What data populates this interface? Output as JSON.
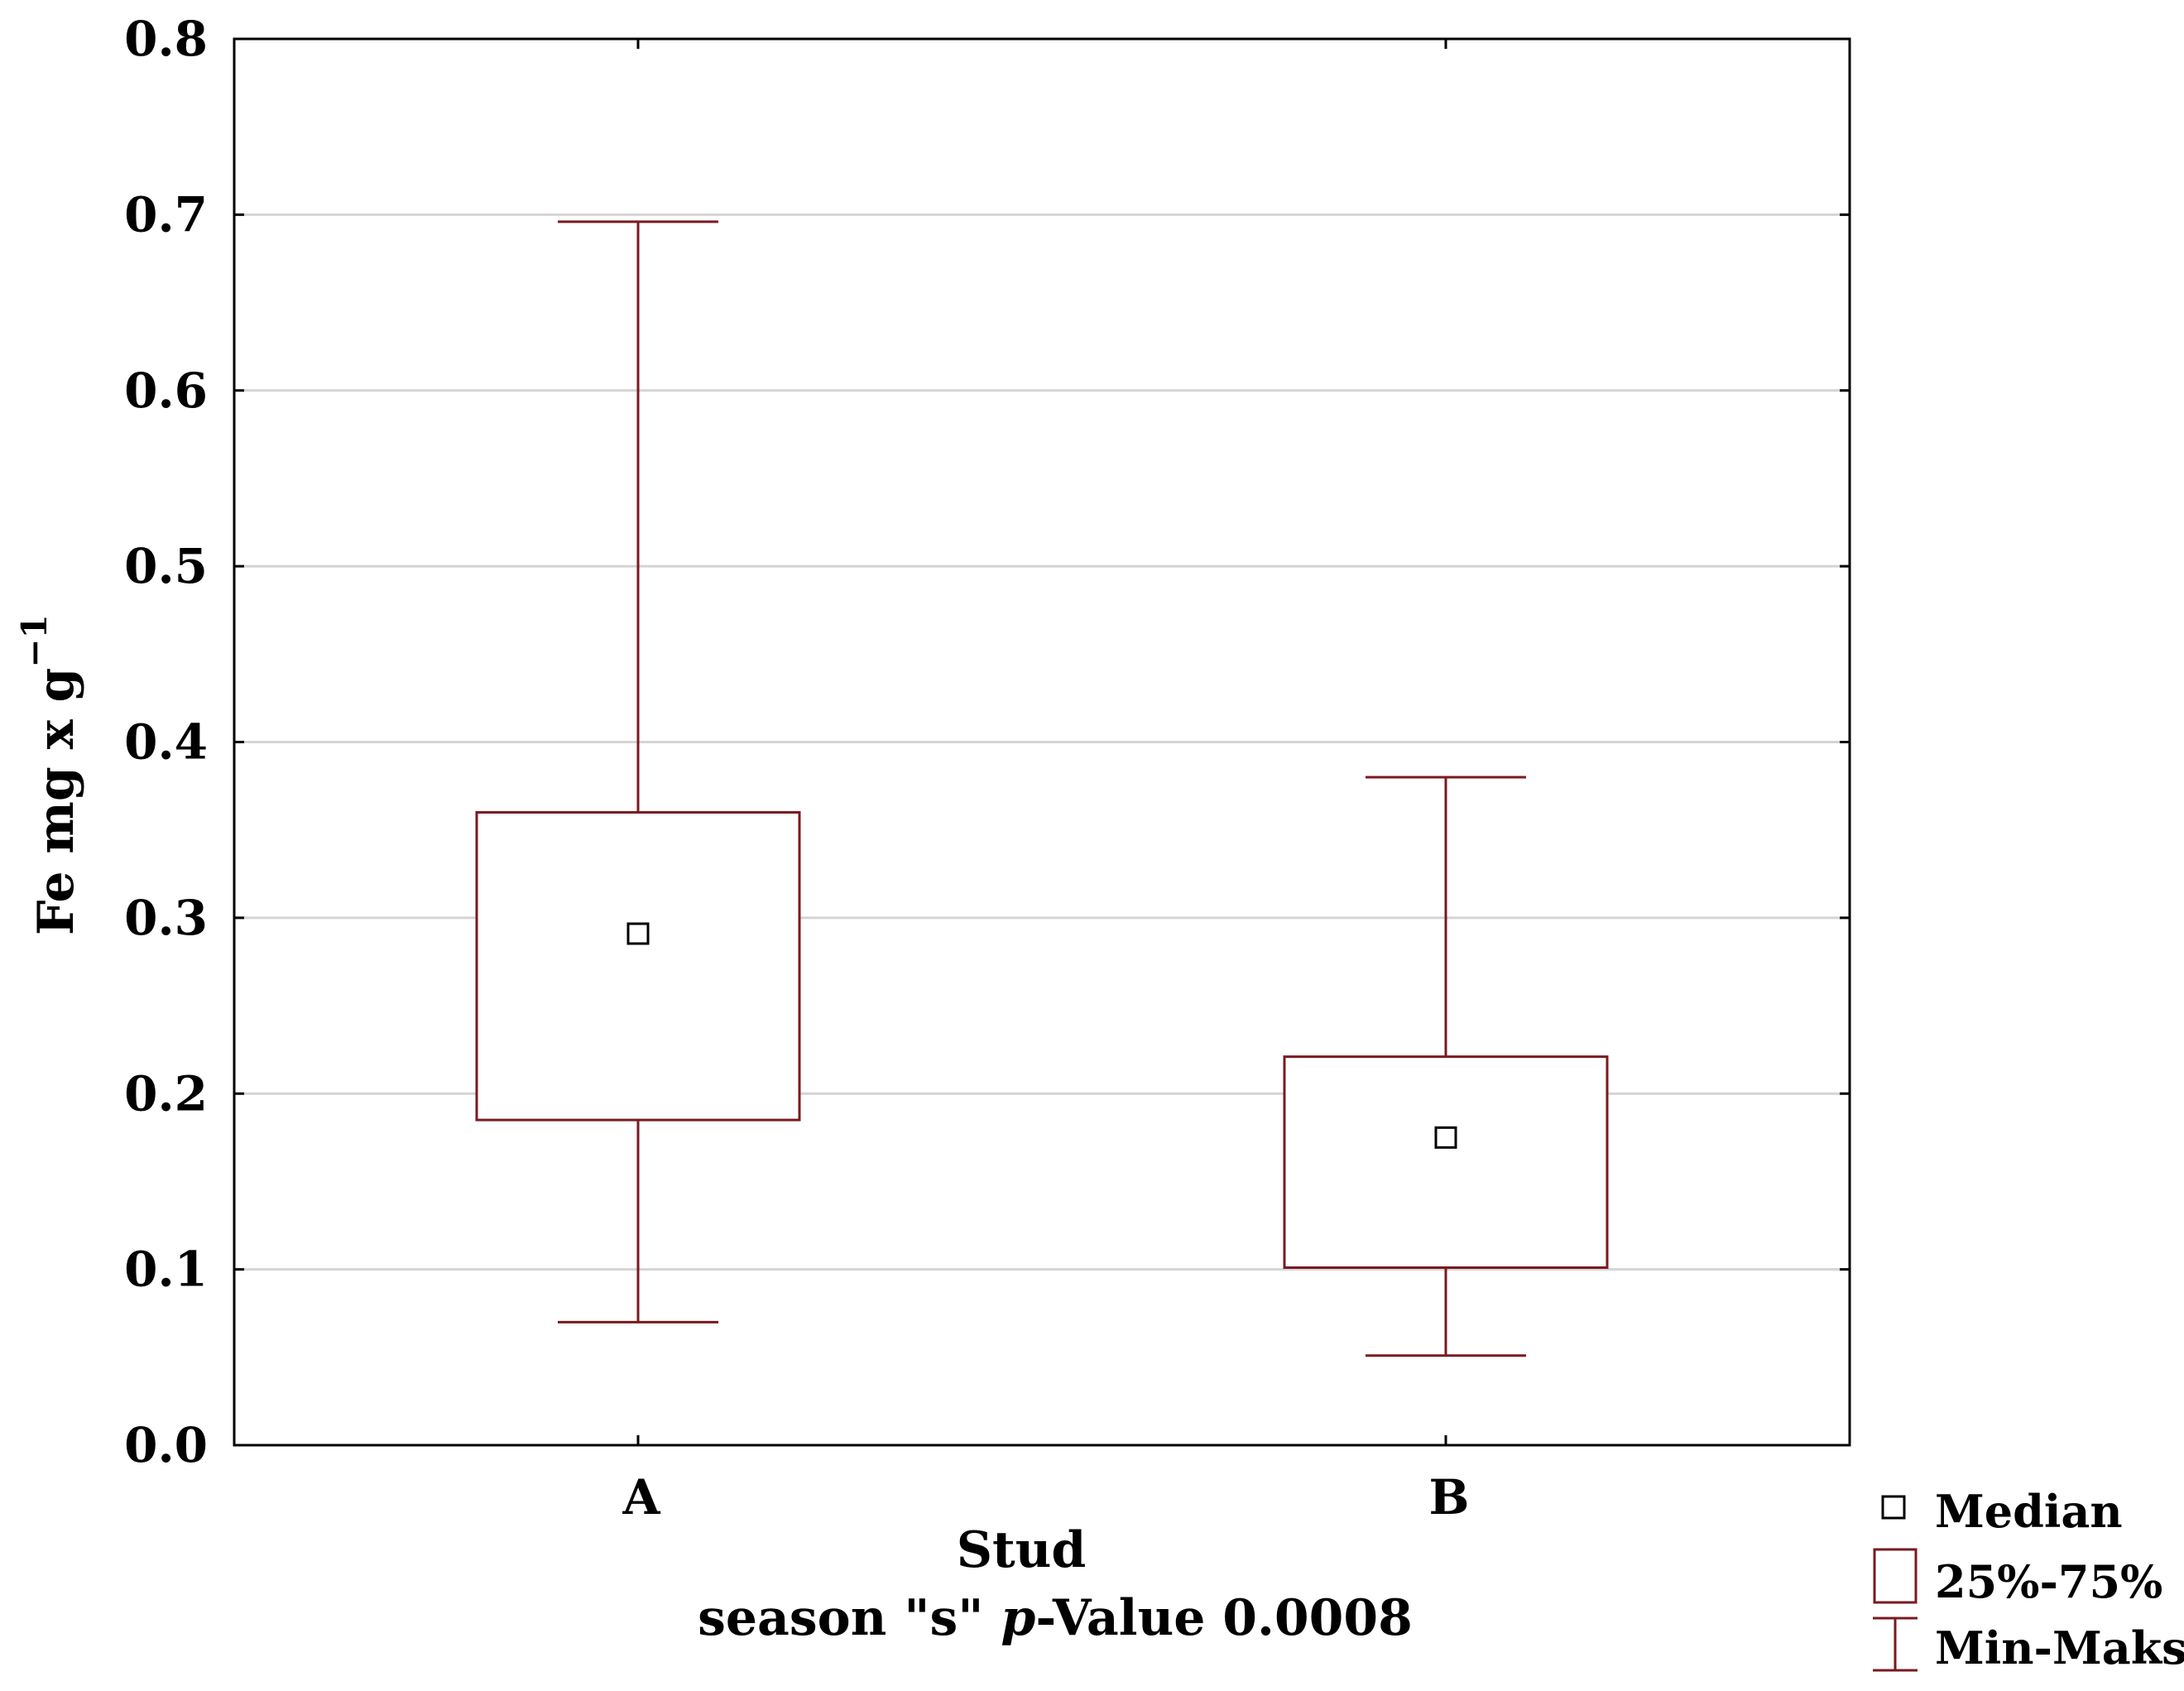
{
  "chart_data": {
    "type": "boxplot",
    "categories": [
      "A",
      "B"
    ],
    "series": [
      {
        "name": "A",
        "min": 0.07,
        "q1": 0.185,
        "median": 0.291,
        "q3": 0.36,
        "max": 0.696
      },
      {
        "name": "B",
        "min": 0.051,
        "q1": 0.101,
        "median": 0.175,
        "q3": 0.221,
        "max": 0.38
      }
    ],
    "ylim": [
      0.0,
      0.8
    ],
    "yticks": [
      "0.0",
      "0.1",
      "0.2",
      "0.3",
      "0.4",
      "0.5",
      "0.6",
      "0.7",
      "0.8"
    ],
    "ylabel_main": "Fe  mg x g",
    "ylabel_sup": "−1",
    "xlabel": "Stud",
    "subtitle_prefix": "season \"s\" ",
    "subtitle_italic": "p",
    "subtitle_suffix": "-Value 0.0008",
    "legend": {
      "median": "Median",
      "box": "25%-75%",
      "whisker": "Min-Maks"
    },
    "grid": true,
    "colors": {
      "box": "#7a1a1f",
      "median_marker": "#000000",
      "grid": "#d4d4d4",
      "axis": "#000000"
    }
  }
}
